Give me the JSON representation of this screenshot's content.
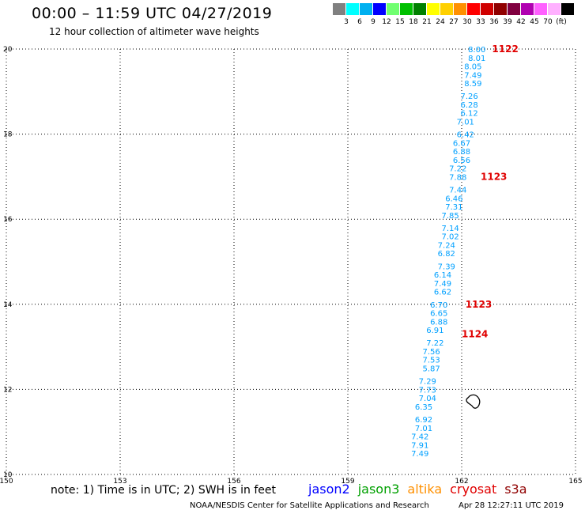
{
  "title": "00:00 – 11:59 UTC 04/27/2019",
  "subtitle": "12 hour collection of altimeter wave heights",
  "legend": {
    "colors": [
      "#808080",
      "#00ffff",
      "#00b0f0",
      "#0000ff",
      "#70ff70",
      "#00c000",
      "#008000",
      "#ffff00",
      "#ffd000",
      "#ff9000",
      "#ff0000",
      "#d00000",
      "#900000",
      "#800040",
      "#b000b0",
      "#ff60ff",
      "#ffb0ff",
      "#000000"
    ],
    "labels": [
      "3",
      "6",
      "9",
      "12",
      "15",
      "18",
      "21",
      "24",
      "27",
      "30",
      "33",
      "36",
      "39",
      "42",
      "45",
      "70"
    ],
    "unit": "(ft)"
  },
  "chart_data": {
    "type": "scatter",
    "xlim": [
      150,
      165
    ],
    "ylim": [
      10,
      20
    ],
    "x_ticks": [
      "150",
      "153",
      "156",
      "159",
      "162",
      "165"
    ],
    "y_ticks": [
      "10",
      "12",
      "14",
      "16",
      "18",
      "20"
    ],
    "grid": true,
    "track": [
      {
        "lon": 162.4,
        "lat": 20.0,
        "swh": "8.00"
      },
      {
        "lon": 162.4,
        "lat": 19.8,
        "swh": "8.01"
      },
      {
        "lon": 162.3,
        "lat": 19.6,
        "swh": "8.05"
      },
      {
        "lon": 162.3,
        "lat": 19.4,
        "swh": "7.49"
      },
      {
        "lon": 162.3,
        "lat": 19.2,
        "swh": "8.59"
      },
      {
        "lon": 162.2,
        "lat": 18.9,
        "swh": "7.26"
      },
      {
        "lon": 162.2,
        "lat": 18.7,
        "swh": "6.28"
      },
      {
        "lon": 162.2,
        "lat": 18.5,
        "swh": "6.12"
      },
      {
        "lon": 162.1,
        "lat": 18.3,
        "swh": "7.01"
      },
      {
        "lon": 162.1,
        "lat": 18.0,
        "swh": "6.42"
      },
      {
        "lon": 162.0,
        "lat": 17.8,
        "swh": "6.67"
      },
      {
        "lon": 162.0,
        "lat": 17.6,
        "swh": "6.88"
      },
      {
        "lon": 162.0,
        "lat": 17.4,
        "swh": "6.56"
      },
      {
        "lon": 161.9,
        "lat": 17.2,
        "swh": "7.22"
      },
      {
        "lon": 161.9,
        "lat": 17.0,
        "swh": "7.88"
      },
      {
        "lon": 161.9,
        "lat": 16.7,
        "swh": "7.44"
      },
      {
        "lon": 161.8,
        "lat": 16.5,
        "swh": "6.46"
      },
      {
        "lon": 161.8,
        "lat": 16.3,
        "swh": "7.31"
      },
      {
        "lon": 161.7,
        "lat": 16.1,
        "swh": "7.85"
      },
      {
        "lon": 161.7,
        "lat": 15.8,
        "swh": "7.14"
      },
      {
        "lon": 161.7,
        "lat": 15.6,
        "swh": "7.02"
      },
      {
        "lon": 161.6,
        "lat": 15.4,
        "swh": "7.24"
      },
      {
        "lon": 161.6,
        "lat": 15.2,
        "swh": "6.82"
      },
      {
        "lon": 161.6,
        "lat": 14.9,
        "swh": "7.39"
      },
      {
        "lon": 161.5,
        "lat": 14.7,
        "swh": "6.14"
      },
      {
        "lon": 161.5,
        "lat": 14.5,
        "swh": "7.49"
      },
      {
        "lon": 161.5,
        "lat": 14.3,
        "swh": "6.62"
      },
      {
        "lon": 161.4,
        "lat": 14.0,
        "swh": "6.70"
      },
      {
        "lon": 161.4,
        "lat": 13.8,
        "swh": "6.65"
      },
      {
        "lon": 161.4,
        "lat": 13.6,
        "swh": "6.88"
      },
      {
        "lon": 161.3,
        "lat": 13.4,
        "swh": "6.91"
      },
      {
        "lon": 161.3,
        "lat": 13.1,
        "swh": "7.22"
      },
      {
        "lon": 161.2,
        "lat": 12.9,
        "swh": "7.56"
      },
      {
        "lon": 161.2,
        "lat": 12.7,
        "swh": "7.53"
      },
      {
        "lon": 161.2,
        "lat": 12.5,
        "swh": "5.87"
      },
      {
        "lon": 161.1,
        "lat": 12.2,
        "swh": "7.29"
      },
      {
        "lon": 161.1,
        "lat": 12.0,
        "swh": "7.73"
      },
      {
        "lon": 161.1,
        "lat": 11.8,
        "swh": "7.04"
      },
      {
        "lon": 161.0,
        "lat": 11.6,
        "swh": "6.35"
      },
      {
        "lon": 161.0,
        "lat": 11.3,
        "swh": "6.92"
      },
      {
        "lon": 161.0,
        "lat": 11.1,
        "swh": "7.01"
      },
      {
        "lon": 160.9,
        "lat": 10.9,
        "swh": "7.42"
      },
      {
        "lon": 160.9,
        "lat": 10.7,
        "swh": "7.91"
      },
      {
        "lon": 160.9,
        "lat": 10.5,
        "swh": "7.49"
      }
    ],
    "pass_labels": [
      {
        "lon": 162.8,
        "lat": 20.0,
        "text": "1122"
      },
      {
        "lon": 162.5,
        "lat": 17.0,
        "text": "1123"
      },
      {
        "lon": 162.1,
        "lat": 14.0,
        "text": "1123"
      },
      {
        "lon": 162.0,
        "lat": 13.3,
        "text": "1124"
      }
    ],
    "islands": [
      {
        "lon": 162.3,
        "lat": 11.7
      }
    ]
  },
  "footer": {
    "note": "note: 1) Time is in UTC; 2) SWH is in feet",
    "satellites": [
      {
        "name": "jason2",
        "color": "#0000ff"
      },
      {
        "name": "jason3",
        "color": "#00a000"
      },
      {
        "name": "altika",
        "color": "#ff9000"
      },
      {
        "name": "cryosat",
        "color": "#e00000"
      },
      {
        "name": "s3a",
        "color": "#900000"
      }
    ],
    "credit": "NOAA/NESDIS Center for Satellite Applications and Research",
    "timestamp": "Apr 28 12:27:11 UTC 2019"
  }
}
